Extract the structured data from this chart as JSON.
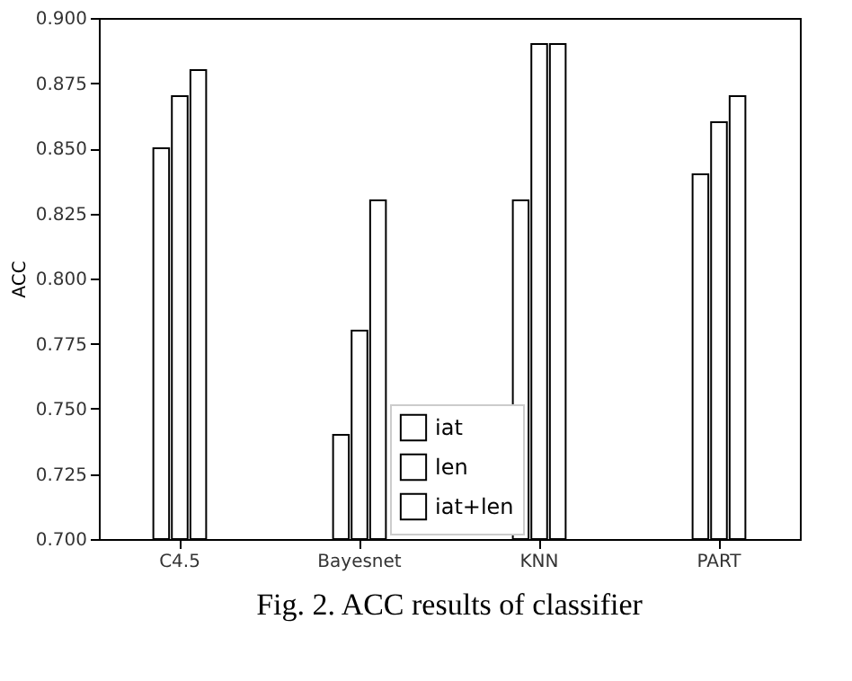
{
  "chart_data": {
    "type": "bar",
    "ylabel": "ACC",
    "categories": [
      "C4.5",
      "Bayesnet",
      "KNN",
      "PART"
    ],
    "series": [
      {
        "name": "iat",
        "color": "#ffffff",
        "values": [
          0.85,
          0.74,
          0.83,
          0.84
        ]
      },
      {
        "name": "len",
        "color": "#ffffff",
        "values": [
          0.87,
          0.78,
          0.89,
          0.86
        ]
      },
      {
        "name": "iat+len",
        "color": "#ffffff",
        "values": [
          0.88,
          0.83,
          0.89,
          0.87
        ]
      }
    ],
    "ylim": [
      0.7,
      0.9
    ],
    "yticks": [
      {
        "value": 0.7,
        "label": "0.700"
      },
      {
        "value": 0.725,
        "label": "0.725"
      },
      {
        "value": 0.75,
        "label": "0.750"
      },
      {
        "value": 0.775,
        "label": "0.775"
      },
      {
        "value": 0.8,
        "label": "0.800"
      },
      {
        "value": 0.825,
        "label": "0.825"
      },
      {
        "value": 0.85,
        "label": "0.850"
      },
      {
        "value": 0.875,
        "label": "0.875"
      },
      {
        "value": 0.9,
        "label": "0.900"
      }
    ],
    "legend": "bottom",
    "grid": false,
    "annotations": [
      "Fig. 2. ACC results of classifier"
    ]
  }
}
